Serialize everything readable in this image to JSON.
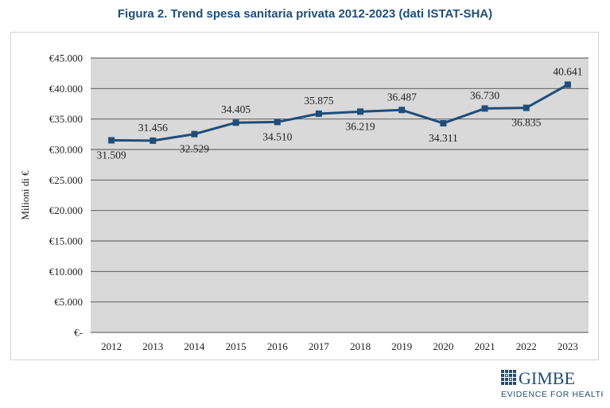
{
  "title": "Figura 2. Trend spesa sanitaria privata 2012-2023 (dati ISTAT-SHA)",
  "logo": {
    "name": "GIMBE",
    "tagline": "EVIDENCE FOR HEALTH"
  },
  "colors": {
    "series": "#1f4e79",
    "plot_bg": "#d9d9d9",
    "gridline": "#4d4d4d",
    "title": "#1f4e79"
  },
  "chart_data": {
    "type": "line",
    "title": "Figura 2. Trend spesa sanitaria privata 2012-2023 (dati ISTAT-SHA)",
    "xlabel": "",
    "ylabel": "Milioni di €",
    "categories": [
      "2012",
      "2013",
      "2014",
      "2015",
      "2016",
      "2017",
      "2018",
      "2019",
      "2020",
      "2021",
      "2022",
      "2023"
    ],
    "series": [
      {
        "values": [
          31509,
          31456,
          32529,
          34405,
          34510,
          35875,
          36219,
          36487,
          34311,
          36730,
          36835,
          40641
        ]
      }
    ],
    "data_labels": [
      "31.509",
      "31.456",
      "32.529",
      "34.405",
      "34.510",
      "35.875",
      "36.219",
      "36.487",
      "34.311",
      "36.730",
      "36.835",
      "40.641"
    ],
    "label_positions": [
      "below",
      "above",
      "below",
      "above",
      "below",
      "above",
      "below",
      "above",
      "below",
      "above",
      "below",
      "above"
    ],
    "ylim": [
      0,
      45000
    ],
    "yticks": [
      0,
      5000,
      10000,
      15000,
      20000,
      25000,
      30000,
      35000,
      40000,
      45000
    ],
    "ytick_labels": [
      "€-",
      "€5.000",
      "€10.000",
      "€15.000",
      "€20.000",
      "€25.000",
      "€30.000",
      "€35.000",
      "€40.000",
      "€45.000"
    ],
    "grid": true,
    "marker": "square"
  }
}
